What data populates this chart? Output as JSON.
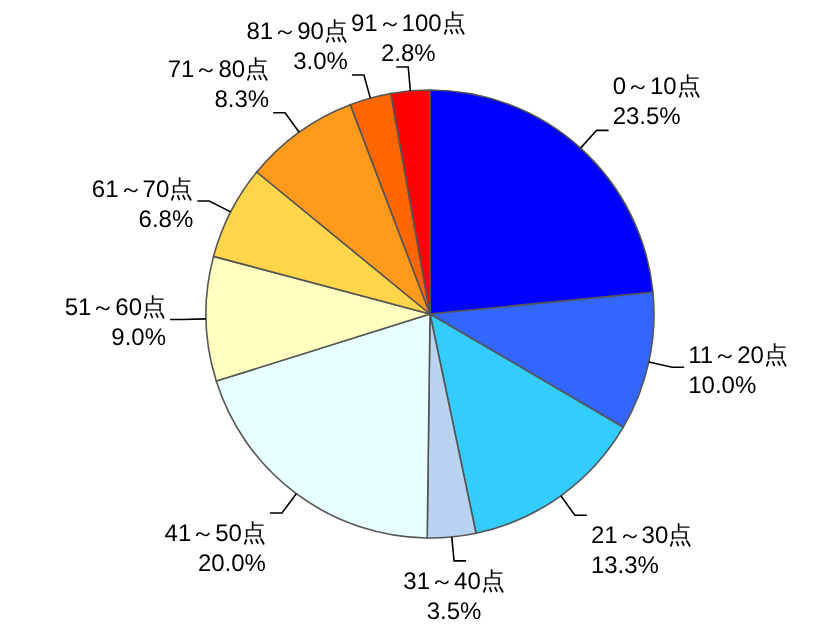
{
  "chart_data": {
    "type": "pie",
    "categories": [
      "0～10点",
      "11～20点",
      "21～30点",
      "31～40点",
      "41～50点",
      "51～60点",
      "61～70点",
      "71～80点",
      "81～90点",
      "91～100点"
    ],
    "values": [
      23.5,
      10.0,
      13.3,
      3.5,
      20.0,
      9.0,
      6.8,
      8.3,
      3.0,
      2.8
    ],
    "value_labels": [
      "23.5%",
      "10.0%",
      "13.3%",
      "3.5%",
      "20.0%",
      "9.0%",
      "6.8%",
      "8.3%",
      "3.0%",
      "2.8%"
    ],
    "colors": [
      "#0000ff",
      "#3366ff",
      "#33ccff",
      "#b8d4f0",
      "#e8ffff",
      "#ffffc0",
      "#ffd54a",
      "#ff9a1a",
      "#ff6600",
      "#ff0000"
    ]
  }
}
